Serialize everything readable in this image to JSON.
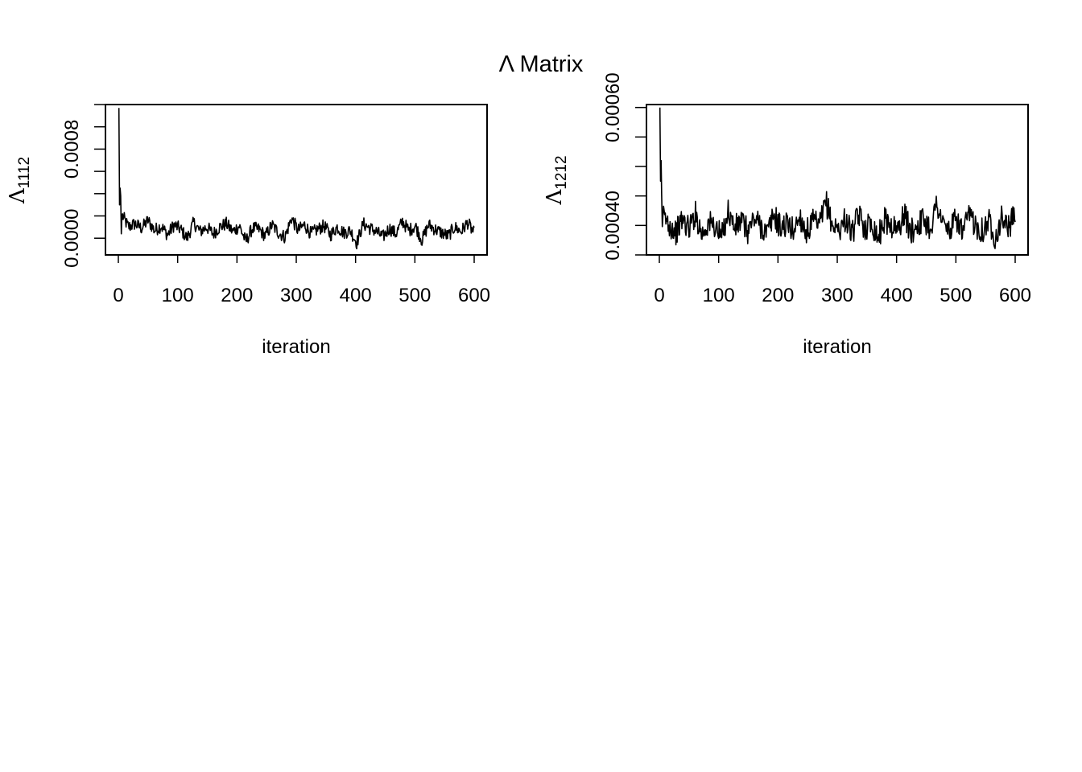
{
  "figure_title": "Λ Matrix",
  "chart_data": [
    {
      "type": "line",
      "title": "",
      "xlabel": "iteration",
      "ylabel": "Λ",
      "ylabel_subscript": "1112",
      "xlim": [
        0,
        600
      ],
      "ylim": [
        -0.00015,
        0.0012
      ],
      "x_ticks": [
        0,
        100,
        200,
        300,
        400,
        500,
        600
      ],
      "x_tick_labels": [
        "0",
        "100",
        "200",
        "300",
        "400",
        "500",
        "600"
      ],
      "y_ticks": [
        0.0,
        0.0002,
        0.0004,
        0.0006,
        0.0008,
        0.001,
        0.0012
      ],
      "y_tick_labels": [
        "0.0000",
        "",
        "",
        "",
        "0.0008",
        "",
        ""
      ],
      "series": [
        {
          "name": "",
          "x_start": 1,
          "x_step": 1,
          "values": [
            0.00117,
            0.0003,
            0.00045,
            0.00038,
            4e-05,
            0.00021,
            0.0001,
            0.00013,
            9e-05,
            0.00016,
            7e-05,
            0.00011,
            3e-05,
            0.00012,
            8e-05,
            0.0,
            0.00014,
            6e-05,
            0.0001,
            4e-05,
            0.0001,
            0.00013,
            6e-05,
            0.00011,
            -3e-05,
            9e-05,
            8e-05,
            2e-05,
            0.00012,
            5e-05,
            1e-05,
            0.00018,
            7e-05,
            0.00012,
            4e-05,
            8e-05,
            0.00011,
            3e-05,
            0.0001,
            5e-05,
            7e-05,
            -4e-05,
            0.00013,
            9e-05,
            6e-05,
            1e-05,
            9e-05,
            4e-05,
            0.00015,
            7e-05,
            0.00011,
            -2e-05,
            0.00012,
            8e-05,
            5e-05,
            2e-05,
            0.0001,
            6e-05,
            0.00014,
            4e-05
          ]
        }
      ]
    },
    {
      "type": "line",
      "title": "",
      "xlabel": "iteration",
      "ylabel": "Λ",
      "ylabel_subscript": "1212",
      "xlim": [
        0,
        600
      ],
      "ylim": [
        0.00035,
        0.000605
      ],
      "x_ticks": [
        0,
        100,
        200,
        300,
        400,
        500,
        600
      ],
      "x_tick_labels": [
        "0",
        "100",
        "200",
        "300",
        "400",
        "500",
        "600"
      ],
      "y_ticks": [
        0.00035,
        0.0004,
        0.00045,
        0.0005,
        0.00055,
        0.0006
      ],
      "y_tick_labels": [
        "",
        "0.00040",
        "",
        "",
        "",
        "0.00060"
      ],
      "series": [
        {
          "name": "",
          "x_start": 1,
          "x_step": 1,
          "values": [
            0.0006,
            0.000475,
            0.00051,
            0.00045,
            0.000398,
            0.000415,
            0.000402,
            0.000388,
            0.00041,
            0.000395,
            0.00042,
            0.000385,
            0.000405,
            0.000398,
            0.00038,
            0.000425,
            0.000395,
            0.000408,
            0.00039,
            0.000412,
            0.0004,
            0.000386,
            0.000418,
            0.000397,
            0.000402,
            0.000392,
            0.000415,
            0.000388,
            0.000406,
            0.000398,
            0.00044,
            0.0004,
            0.000392,
            0.000412,
            0.000385,
            0.000418,
            0.000396,
            0.000405,
            0.00038,
            0.00041,
            0.0004,
            0.000392,
            0.00042,
            0.000388,
            0.000402,
            0.00041,
            0.000395,
            0.000438,
            0.0004,
            0.00039,
            0.000412,
            0.000386,
            0.000418,
            0.0004,
            0.000392,
            0.000408,
            0.00038,
            0.000415,
            0.000396,
            0.00042
          ]
        }
      ]
    }
  ]
}
